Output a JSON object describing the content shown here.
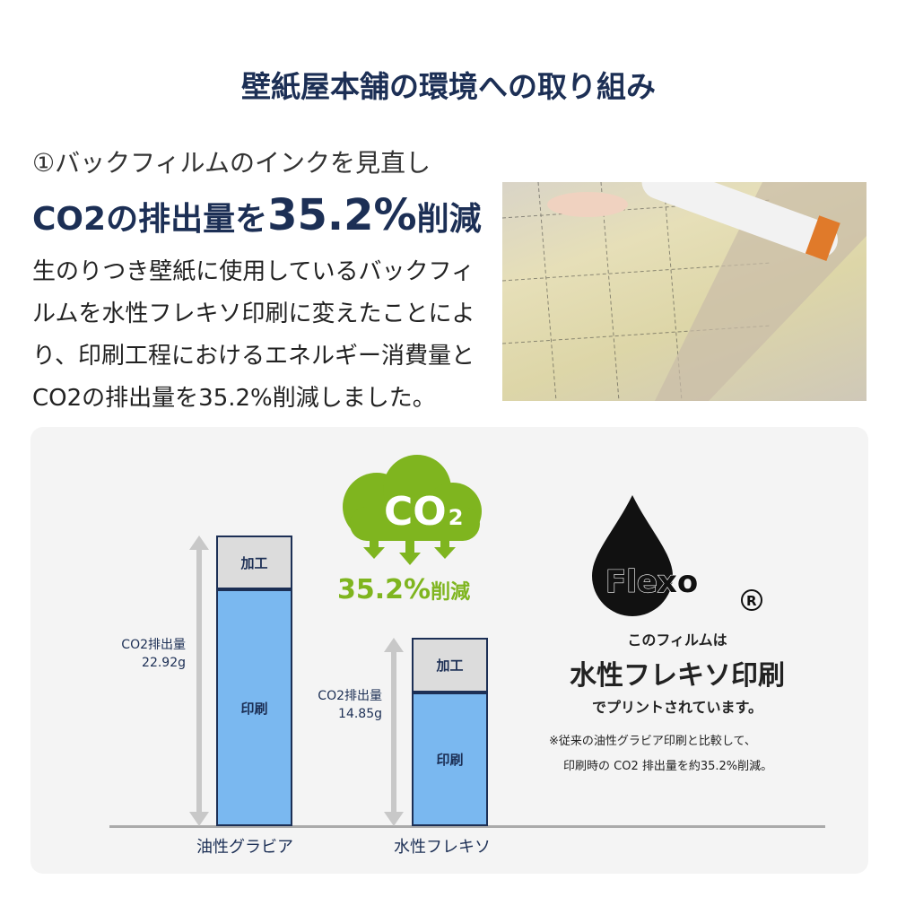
{
  "title": "壁紙屋本舗の環境への取り組み",
  "subtitle": "①バックフィルムのインクを見直し",
  "headline": {
    "pre": "CO2の排出量を",
    "value": "35.2%",
    "post": "削減"
  },
  "body": "生のりつき壁紙に使用しているバックフィルムを水性フレキソ印刷に変えたことにより、印刷工程におけるエネルギー消費量とCO2の排出量を35.2%削減しました。",
  "cloud": {
    "label": "CO",
    "sub": "2",
    "reduction": "35.2%",
    "reduction_suffix": "削減"
  },
  "flexo": {
    "logo": "Flexo",
    "mark": "®",
    "line1": "このフィルムは",
    "line2": "水性フレキソ印刷",
    "line3": "でプリントされています。",
    "note1": "※従来の油性グラビア印刷と比較して、",
    "note2": "印刷時の CO2 排出量を約35.2%削減。"
  },
  "colors": {
    "navy": "#1c2f55",
    "green": "#7fb51f",
    "print_blue": "#7ab8f0",
    "process_gray": "#dcdcdc"
  },
  "chart_data": {
    "type": "bar",
    "stacked": true,
    "categories": [
      "油性グラビア",
      "水性フレキソ"
    ],
    "series": [
      {
        "name": "印刷",
        "values": [
          18.67,
          10.55
        ]
      },
      {
        "name": "加工",
        "values": [
          4.25,
          4.3
        ]
      }
    ],
    "totals": [
      22.92,
      14.85
    ],
    "total_labels": [
      {
        "label": "CO2排出量",
        "value": "22.92g"
      },
      {
        "label": "CO2排出量",
        "value": "14.85g"
      }
    ],
    "unit": "g",
    "ylim": [
      0,
      22.92
    ],
    "grid": false
  }
}
